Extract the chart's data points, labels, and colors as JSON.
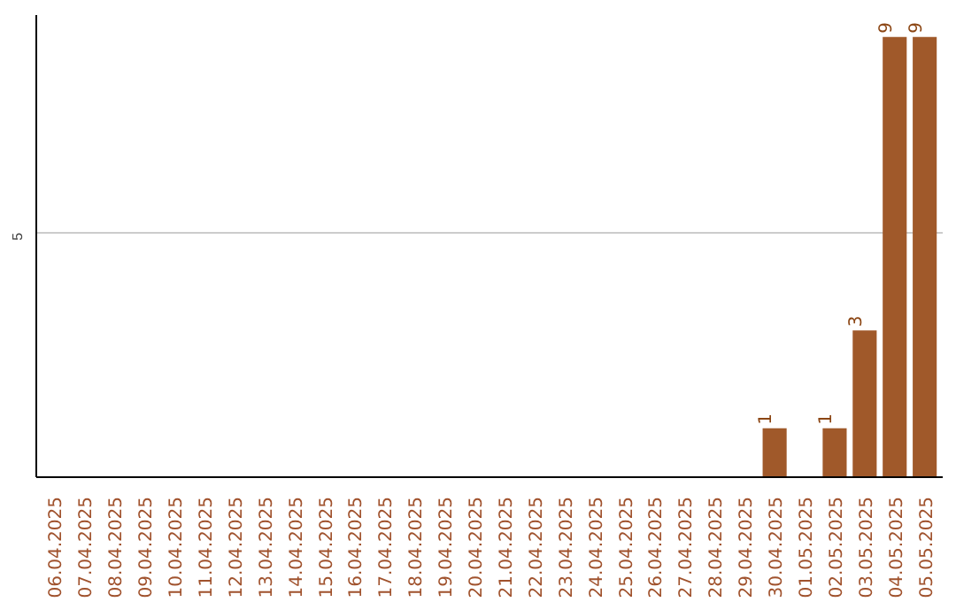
{
  "chart_data": {
    "type": "bar",
    "categories": [
      "06.04.2025",
      "07.04.2025",
      "08.04.2025",
      "09.04.2025",
      "10.04.2025",
      "11.04.2025",
      "12.04.2025",
      "13.04.2025",
      "14.04.2025",
      "15.04.2025",
      "16.04.2025",
      "17.04.2025",
      "18.04.2025",
      "19.04.2025",
      "20.04.2025",
      "21.04.2025",
      "22.04.2025",
      "23.04.2025",
      "24.04.2025",
      "25.04.2025",
      "26.04.2025",
      "27.04.2025",
      "28.04.2025",
      "29.04.2025",
      "30.04.2025",
      "01.05.2025",
      "02.05.2025",
      "03.05.2025",
      "04.05.2025",
      "05.05.2025"
    ],
    "values": [
      null,
      null,
      null,
      null,
      null,
      null,
      null,
      null,
      null,
      null,
      null,
      null,
      null,
      null,
      null,
      null,
      null,
      null,
      null,
      null,
      null,
      null,
      null,
      null,
      1,
      null,
      1,
      3,
      9,
      9
    ],
    "value_labels": [
      null,
      null,
      null,
      null,
      null,
      null,
      null,
      null,
      null,
      null,
      null,
      null,
      null,
      null,
      null,
      null,
      null,
      null,
      null,
      null,
      null,
      null,
      null,
      null,
      "1",
      null,
      "1",
      "3",
      "9",
      "9"
    ],
    "color": "#a0592a",
    "ylim": [
      0,
      9.45
    ],
    "yticks": [
      {
        "value": 5,
        "label": "5"
      }
    ],
    "grid": "y"
  }
}
